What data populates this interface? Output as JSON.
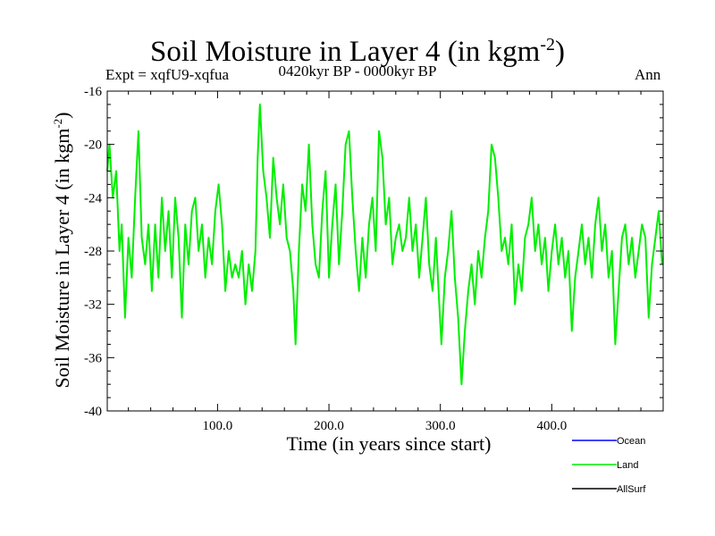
{
  "chart_data": {
    "type": "line",
    "title_main": "Soil Moisture in Layer 4 (in kgm",
    "title_sup": "-2",
    "title_close": ")",
    "subtitle": "0420kyr BP - 0000kyr BP",
    "expt_label": "Expt = xqfU9-xqfua",
    "season_label": "Ann",
    "xlabel": "Time (in years since start)",
    "ylabel_main": "Soil Moisture in Layer 4 (in kgm",
    "ylabel_sup": "-2",
    "ylabel_close": ")",
    "xlim": [
      1,
      500
    ],
    "ylim": [
      -40,
      -16
    ],
    "x_ticks": [
      100,
      200,
      300,
      400
    ],
    "x_tick_labels": [
      "100.0",
      "200.0",
      "300.0",
      "400.0"
    ],
    "y_ticks": [
      -40,
      -36,
      -32,
      -28,
      -24,
      -20,
      -16
    ],
    "y_tick_labels": [
      "-40",
      "-36",
      "-32",
      "-28",
      "-24",
      "-20",
      "-16"
    ],
    "legend": [
      {
        "name": "Ocean",
        "color": "#0000ff"
      },
      {
        "name": "Land",
        "color": "#00ee00"
      },
      {
        "name": "AllSurf",
        "color": "#000000"
      }
    ],
    "series": [
      {
        "name": "Land",
        "color": "#00ee00",
        "points": [
          [
            1,
            -22
          ],
          [
            3,
            -20
          ],
          [
            6,
            -24
          ],
          [
            9,
            -22
          ],
          [
            12,
            -28
          ],
          [
            14,
            -26
          ],
          [
            17,
            -33
          ],
          [
            20,
            -27
          ],
          [
            23,
            -30
          ],
          [
            26,
            -24
          ],
          [
            29,
            -19
          ],
          [
            32,
            -27
          ],
          [
            35,
            -29
          ],
          [
            38,
            -26
          ],
          [
            41,
            -31
          ],
          [
            44,
            -26
          ],
          [
            47,
            -30
          ],
          [
            50,
            -24
          ],
          [
            53,
            -28
          ],
          [
            56,
            -25
          ],
          [
            59,
            -30
          ],
          [
            62,
            -24
          ],
          [
            65,
            -27
          ],
          [
            68,
            -33
          ],
          [
            71,
            -26
          ],
          [
            74,
            -29
          ],
          [
            77,
            -25
          ],
          [
            80,
            -24
          ],
          [
            83,
            -28
          ],
          [
            86,
            -26
          ],
          [
            89,
            -30
          ],
          [
            92,
            -27
          ],
          [
            95,
            -29
          ],
          [
            98,
            -25
          ],
          [
            101,
            -23
          ],
          [
            104,
            -26
          ],
          [
            107,
            -31
          ],
          [
            110,
            -28
          ],
          [
            113,
            -30
          ],
          [
            116,
            -29
          ],
          [
            119,
            -30
          ],
          [
            122,
            -28
          ],
          [
            125,
            -32
          ],
          [
            128,
            -29
          ],
          [
            131,
            -31
          ],
          [
            134,
            -28
          ],
          [
            136,
            -21
          ],
          [
            138,
            -17
          ],
          [
            141,
            -22
          ],
          [
            144,
            -24
          ],
          [
            147,
            -27
          ],
          [
            150,
            -21
          ],
          [
            153,
            -24
          ],
          [
            156,
            -26
          ],
          [
            159,
            -23
          ],
          [
            162,
            -27
          ],
          [
            165,
            -28
          ],
          [
            168,
            -31
          ],
          [
            170,
            -35
          ],
          [
            173,
            -28
          ],
          [
            176,
            -23
          ],
          [
            179,
            -25
          ],
          [
            182,
            -20
          ],
          [
            185,
            -26
          ],
          [
            188,
            -29
          ],
          [
            191,
            -30
          ],
          [
            194,
            -25
          ],
          [
            197,
            -22
          ],
          [
            200,
            -30
          ],
          [
            203,
            -26
          ],
          [
            206,
            -23
          ],
          [
            209,
            -29
          ],
          [
            212,
            -25
          ],
          [
            215,
            -20
          ],
          [
            218,
            -19
          ],
          [
            221,
            -24
          ],
          [
            224,
            -28
          ],
          [
            227,
            -31
          ],
          [
            230,
            -27
          ],
          [
            233,
            -30
          ],
          [
            236,
            -26
          ],
          [
            239,
            -24
          ],
          [
            242,
            -28
          ],
          [
            245,
            -19
          ],
          [
            248,
            -21
          ],
          [
            251,
            -26
          ],
          [
            254,
            -24
          ],
          [
            257,
            -29
          ],
          [
            260,
            -27
          ],
          [
            263,
            -26
          ],
          [
            266,
            -28
          ],
          [
            269,
            -27
          ],
          [
            272,
            -24
          ],
          [
            275,
            -28
          ],
          [
            278,
            -26
          ],
          [
            281,
            -30
          ],
          [
            284,
            -27
          ],
          [
            287,
            -24
          ],
          [
            290,
            -29
          ],
          [
            293,
            -31
          ],
          [
            296,
            -27
          ],
          [
            299,
            -32
          ],
          [
            301,
            -35
          ],
          [
            304,
            -30
          ],
          [
            307,
            -28
          ],
          [
            310,
            -25
          ],
          [
            313,
            -30
          ],
          [
            316,
            -33
          ],
          [
            319,
            -38
          ],
          [
            322,
            -34
          ],
          [
            325,
            -31
          ],
          [
            328,
            -29
          ],
          [
            331,
            -32
          ],
          [
            334,
            -28
          ],
          [
            337,
            -30
          ],
          [
            340,
            -27
          ],
          [
            343,
            -25
          ],
          [
            346,
            -20
          ],
          [
            349,
            -21
          ],
          [
            352,
            -24
          ],
          [
            355,
            -28
          ],
          [
            358,
            -27
          ],
          [
            361,
            -29
          ],
          [
            364,
            -26
          ],
          [
            367,
            -32
          ],
          [
            370,
            -29
          ],
          [
            373,
            -31
          ],
          [
            376,
            -27
          ],
          [
            379,
            -26
          ],
          [
            382,
            -24
          ],
          [
            385,
            -28
          ],
          [
            388,
            -26
          ],
          [
            391,
            -29
          ],
          [
            394,
            -27
          ],
          [
            397,
            -31
          ],
          [
            400,
            -28
          ],
          [
            403,
            -26
          ],
          [
            406,
            -29
          ],
          [
            409,
            -27
          ],
          [
            412,
            -30
          ],
          [
            415,
            -28
          ],
          [
            418,
            -34
          ],
          [
            421,
            -30
          ],
          [
            424,
            -28
          ],
          [
            427,
            -26
          ],
          [
            430,
            -29
          ],
          [
            433,
            -27
          ],
          [
            436,
            -30
          ],
          [
            439,
            -26
          ],
          [
            442,
            -24
          ],
          [
            445,
            -28
          ],
          [
            448,
            -26
          ],
          [
            451,
            -30
          ],
          [
            454,
            -28
          ],
          [
            457,
            -35
          ],
          [
            460,
            -31
          ],
          [
            463,
            -27
          ],
          [
            466,
            -26
          ],
          [
            469,
            -29
          ],
          [
            472,
            -27
          ],
          [
            475,
            -30
          ],
          [
            478,
            -28
          ],
          [
            481,
            -26
          ],
          [
            484,
            -27
          ],
          [
            487,
            -33
          ],
          [
            490,
            -29
          ],
          [
            493,
            -27
          ],
          [
            496,
            -25
          ],
          [
            499,
            -29
          ]
        ]
      }
    ]
  }
}
